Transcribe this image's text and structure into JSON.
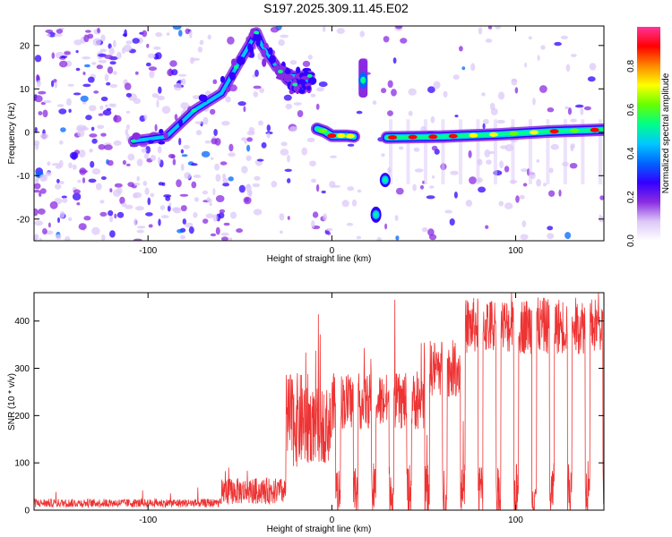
{
  "title": "S197.2025.309.11.45.E02",
  "chart_data": [
    {
      "type": "heatmap",
      "name": "spectrogram",
      "title": "S197.2025.309.11.45.E02",
      "xlabel": "Height of straight line (km)",
      "ylabel": "Frequency (Hz)",
      "xlim": [
        -162,
        148
      ],
      "ylim": [
        -25,
        24.5
      ],
      "xticks": [
        -100,
        0,
        100
      ],
      "yticks": [
        20,
        10,
        0,
        -10,
        -20
      ],
      "features": [
        {
          "label": "rising branch",
          "x": [
            -108,
            -90,
            -75,
            -60,
            -52,
            -45,
            -41,
            -38,
            -30,
            -22,
            -15
          ],
          "y": [
            -2,
            -1,
            5,
            9,
            15,
            20,
            23,
            20,
            15,
            13,
            13
          ]
        },
        {
          "label": "upper band",
          "x": [
            -28,
            -24,
            -20,
            -16,
            -12
          ],
          "y": [
            14,
            12,
            11,
            10,
            13
          ]
        },
        {
          "label": "main band left",
          "x": [
            -8,
            -4,
            0,
            4,
            8,
            12
          ],
          "y": [
            0.8,
            0.2,
            -0.8,
            -0.8,
            -0.8,
            -1
          ]
        },
        {
          "label": "vertical streak",
          "x": [
            17,
            17
          ],
          "y": [
            8,
            17
          ]
        },
        {
          "label": "lower blobs",
          "x": [
            24,
            29
          ],
          "y": [
            -19,
            -11
          ]
        },
        {
          "label": "main band right",
          "x": [
            30,
            60,
            90,
            120,
            148
          ],
          "y": [
            -1.2,
            -1.0,
            -0.5,
            0.2,
            0.6
          ]
        }
      ]
    },
    {
      "type": "line",
      "name": "snr",
      "xlabel": "Height of straight line (km)",
      "ylabel": "SNR (10 * v/v)",
      "xlim": [
        -162,
        148
      ],
      "ylim": [
        0,
        460
      ],
      "xticks": [
        -100,
        0,
        100
      ],
      "yticks": [
        0,
        100,
        200,
        300,
        400
      ],
      "color": "#ee3333",
      "regions": [
        {
          "x": [
            -162,
            -60
          ],
          "level": 15,
          "noise": 9
        },
        {
          "x": [
            -60,
            -25
          ],
          "level": 40,
          "noise": 28
        },
        {
          "x": [
            -25,
            -12
          ],
          "level": 190,
          "noise": 100
        },
        {
          "x": [
            -12,
            0
          ],
          "level": 180,
          "noise": 80
        },
        {
          "x": [
            0,
            148
          ],
          "level": 300,
          "noise": 60
        }
      ]
    }
  ],
  "colorbar": {
    "label": "Normalized spectral amplitude",
    "ticks": [
      "0.0",
      "0.2",
      "0.4",
      "0.6",
      "0.8"
    ],
    "tick_values": [
      0.0,
      0.2,
      0.4,
      0.6,
      0.8
    ],
    "range": [
      0,
      0.98
    ],
    "colors": [
      "#ffffff",
      "#dcc8f8",
      "#8a2be2",
      "#3300ff",
      "#0066ff",
      "#00c8ff",
      "#00ff88",
      "#66ff00",
      "#ffff00",
      "#ff8800",
      "#ff0000",
      "#ff3399"
    ]
  },
  "xlabel_top": "Height of straight line (km)",
  "xlabel_bottom": "Height of straight line (km)",
  "ylabel_top": "Frequency (Hz)",
  "ylabel_bottom": "SNR (10 * v/v)"
}
